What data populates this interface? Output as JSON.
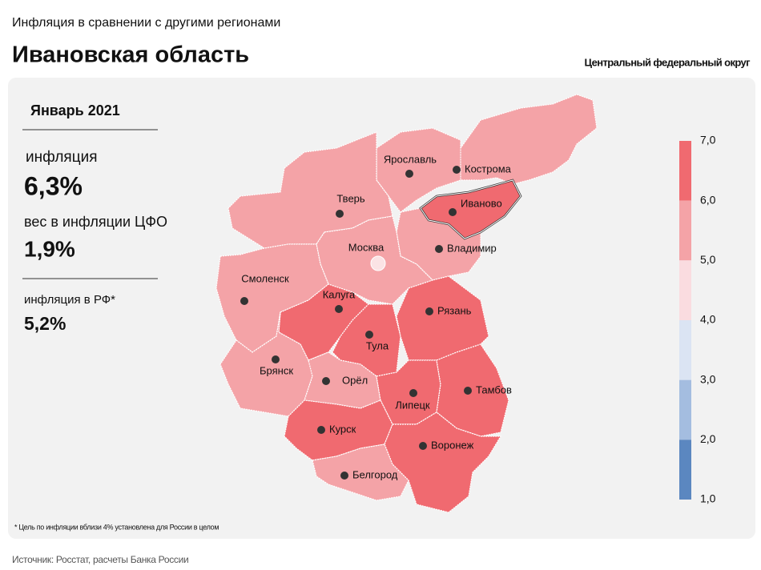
{
  "header": {
    "subtitle": "Инфляция в сравнении с другими регионами",
    "title": "Ивановская область",
    "district": "Центральный федеральный округ"
  },
  "panel": {
    "period": "Январь 2021",
    "inflation_label": "инфляция",
    "inflation_value": "6,3%",
    "weight_label": "вес в инфляции ЦФО",
    "weight_value": "1,9%",
    "rf_label": "инфляция в РФ*",
    "rf_value": "5,2%"
  },
  "regions": [
    {
      "name": "Кострома",
      "color": "#f4a3a7"
    },
    {
      "name": "Ярославль",
      "color": "#f4a3a7"
    },
    {
      "name": "Тверь",
      "color": "#f4a3a7"
    },
    {
      "name": "Иваново",
      "color": "#f06a70"
    },
    {
      "name": "Владимир",
      "color": "#f4a3a7"
    },
    {
      "name": "Москва",
      "color": "#f4a3a7"
    },
    {
      "name": "Смоленск",
      "color": "#f4a3a7"
    },
    {
      "name": "Калуга",
      "color": "#f06a70"
    },
    {
      "name": "Тула",
      "color": "#f06a70"
    },
    {
      "name": "Рязань",
      "color": "#f06a70"
    },
    {
      "name": "Брянск",
      "color": "#f4a3a7"
    },
    {
      "name": "Орёл",
      "color": "#f4a3a7"
    },
    {
      "name": "Липецк",
      "color": "#f06a70"
    },
    {
      "name": "Тамбов",
      "color": "#f06a70"
    },
    {
      "name": "Курск",
      "color": "#f06a70"
    },
    {
      "name": "Воронеж",
      "color": "#f06a70"
    },
    {
      "name": "Белгород",
      "color": "#f4a3a7"
    }
  ],
  "legend": {
    "labels": [
      "7,0",
      "6,0",
      "5,0",
      "4,0",
      "3,0",
      "2,0",
      "1,0"
    ],
    "colors": [
      "#f06a70",
      "#f4a3a7",
      "#fadce0",
      "#dbe4f3",
      "#a4bde0",
      "#5b87c0"
    ]
  },
  "footnote": "* Цель по инфляции вблизи 4% установлена для России в целом",
  "source": "Источник: Росстат, расчеты Банка России"
}
